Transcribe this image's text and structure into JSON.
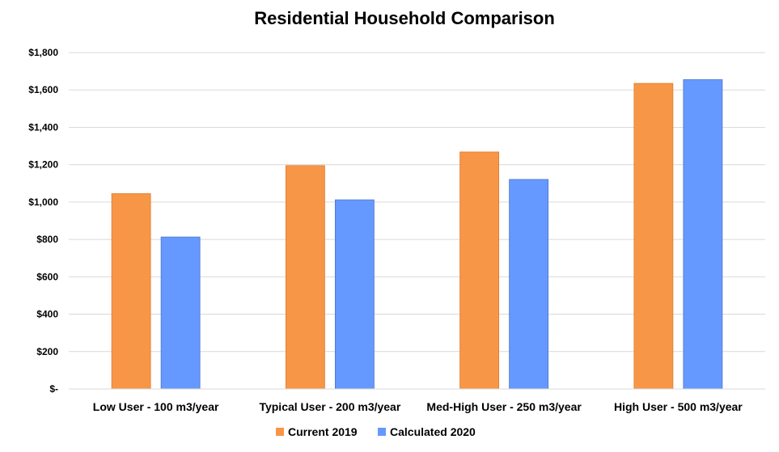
{
  "chart_data": {
    "type": "bar",
    "title": "Residential Household Comparison",
    "xlabel": "",
    "ylabel": "",
    "categories": [
      "Low User - 100 m3/year",
      "Typical User - 200 m3/year",
      "Med-High User - 250 m3/year",
      "High User - 500 m3/year"
    ],
    "series": [
      {
        "name": "Current 2019",
        "color": "#F79646",
        "values": [
          1045,
          1195,
          1268,
          1635
        ]
      },
      {
        "name": "Calculated 2020",
        "color": "#6699FF",
        "values": [
          813,
          1012,
          1121,
          1655
        ]
      }
    ],
    "ylim": [
      0,
      1800
    ],
    "yticks": [
      0,
      200,
      400,
      600,
      800,
      1000,
      1200,
      1400,
      1600,
      1800
    ],
    "ytick_labels": [
      "$-",
      "$200",
      "$400",
      "$600",
      "$800",
      "$1,000",
      "$1,200",
      "$1,400",
      "$1,600",
      "$1,800"
    ],
    "grid": true,
    "legend_position": "bottom"
  }
}
